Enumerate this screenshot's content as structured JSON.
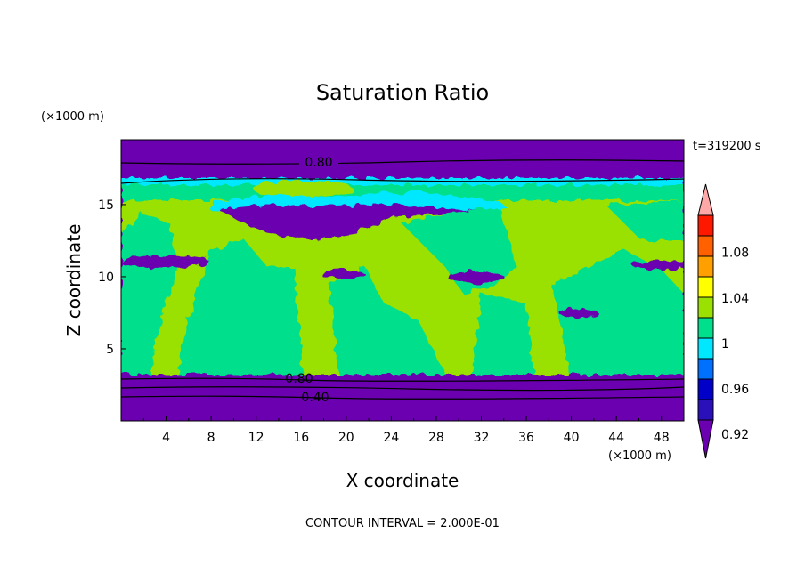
{
  "chart_data": {
    "type": "heatmap",
    "title": "Saturation Ratio",
    "xlabel": "X coordinate",
    "ylabel": "Z coordinate",
    "x_units": "(×1000 m)",
    "y_units": "(×1000 m)",
    "xlim": [
      0,
      50
    ],
    "ylim": [
      0,
      19.5
    ],
    "x_ticks": [
      "4",
      "8",
      "12",
      "16",
      "20",
      "24",
      "28",
      "32",
      "36",
      "40",
      "44",
      "48"
    ],
    "y_ticks": [
      "5",
      "10",
      "15"
    ],
    "time_label": "t=319200 s",
    "footer": "CONTOUR INTERVAL = 2.000E-01",
    "contour_interval": 0.2,
    "contour_labels": [
      "0.80",
      "0.80",
      "0.40"
    ],
    "colorbar": {
      "labels": [
        "0.92",
        "0.96",
        "1",
        "1.04",
        "1.08"
      ],
      "levels": [
        0.92,
        0.94,
        0.96,
        0.98,
        1.0,
        1.02,
        1.04,
        1.06,
        1.08,
        1.1
      ],
      "colors": [
        "#6a00b0",
        "#2a10b8",
        "#0000c8",
        "#0070ff",
        "#00e8ff",
        "#00e08c",
        "#9ae000",
        "#ffff00",
        "#ffa000",
        "#ff6000",
        "#ff1800",
        "#ffa8a8"
      ],
      "extend": "both"
    },
    "fields": [
      {
        "name": "upper-dry-band",
        "z_range": [
          17.0,
          19.5
        ],
        "value_class": "<0.92"
      },
      {
        "name": "upper-moist-layer",
        "z_range": [
          15.2,
          17.0
        ],
        "value_class": "0.98-1.0"
      },
      {
        "name": "mid-dry-patch",
        "z_range": [
          13.5,
          15.5
        ],
        "value_class": "<0.92"
      },
      {
        "name": "cloud-layer",
        "z_range": [
          3.2,
          15.0
        ],
        "value_class": "0.98-1.02"
      },
      {
        "name": "lower-dry-band",
        "z_range": [
          0,
          3.2
        ],
        "value_class": "<0.92"
      }
    ]
  }
}
